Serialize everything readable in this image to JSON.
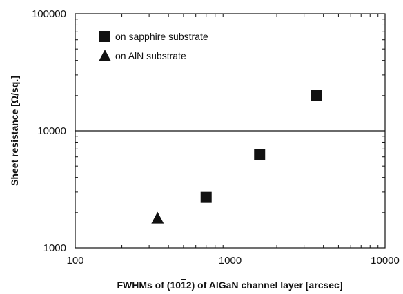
{
  "chart_data": {
    "type": "scatter",
    "xscale": "log",
    "yscale": "log",
    "xlim": [
      100,
      10000
    ],
    "ylim": [
      1000,
      100000
    ],
    "xlabel": "FWHMs of (1012) of AlGaN channel layer [arcsec]",
    "xlabel_parts": {
      "before": "FWHMs of (10",
      "overline": "1",
      "after": "2) of AlGaN channel layer [arcsec]"
    },
    "ylabel": "Sheet resistance [Ω/sq.]",
    "x_tick_labels": [
      "100",
      "1000",
      "10000"
    ],
    "y_tick_labels": [
      "1000",
      "10000",
      "100000"
    ],
    "grid": false,
    "reference_line_y": 10000,
    "legend_position": "top-left",
    "marker_color": "#111111",
    "series": [
      {
        "name": "on sapphire substrate",
        "marker": "square",
        "points": [
          {
            "x": 700,
            "y": 2700
          },
          {
            "x": 1550,
            "y": 6300
          },
          {
            "x": 3600,
            "y": 20000
          }
        ]
      },
      {
        "name": "on AlN substrate",
        "marker": "triangle",
        "points": [
          {
            "x": 340,
            "y": 1800
          }
        ]
      }
    ]
  }
}
